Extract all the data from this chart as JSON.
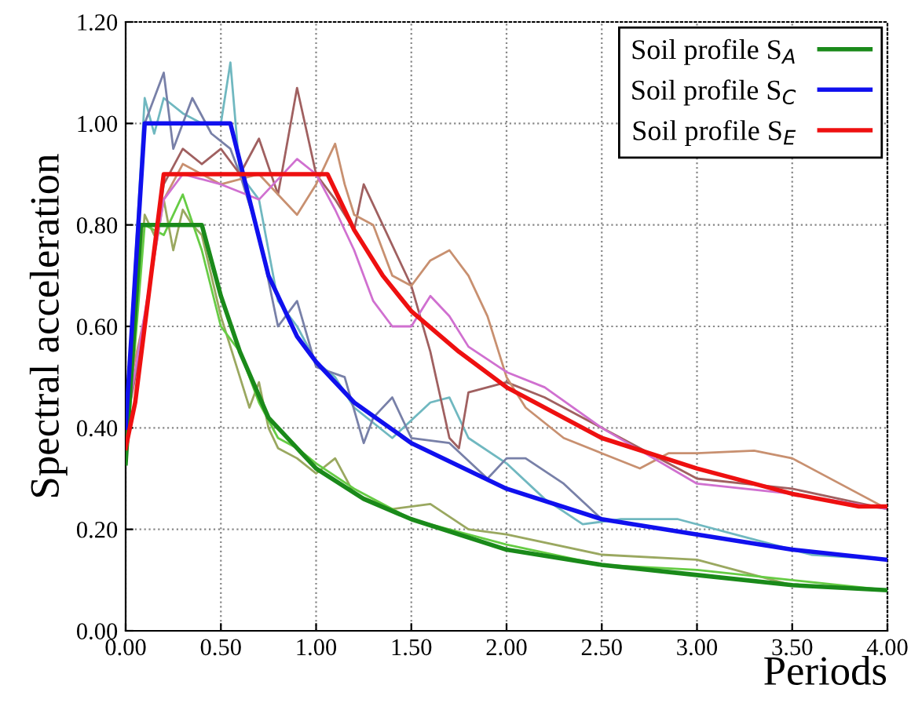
{
  "chart_data": {
    "type": "line",
    "xlabel": "Periods",
    "ylabel": "Spectral acceleration",
    "xlim": [
      0,
      4
    ],
    "ylim": [
      0,
      1.2
    ],
    "xticks": [
      {
        "value": 0,
        "label": "0.00"
      },
      {
        "value": 0.5,
        "label": "0.50"
      },
      {
        "value": 1,
        "label": "1.00"
      },
      {
        "value": 1.5,
        "label": "1.50"
      },
      {
        "value": 2,
        "label": "2.00"
      },
      {
        "value": 2.5,
        "label": "2.50"
      },
      {
        "value": 3,
        "label": "3.00"
      },
      {
        "value": 3.5,
        "label": "3.50"
      },
      {
        "value": 4,
        "label": "4.00"
      }
    ],
    "yticks": [
      {
        "value": 0,
        "label": "0.00"
      },
      {
        "value": 0.2,
        "label": "0.20"
      },
      {
        "value": 0.4,
        "label": "0.40"
      },
      {
        "value": 0.6,
        "label": "0.60"
      },
      {
        "value": 0.8,
        "label": "0.80"
      },
      {
        "value": 1,
        "label": "1.00"
      },
      {
        "value": 1.2,
        "label": "1.20"
      }
    ],
    "grid": true,
    "legend": "top right",
    "series": [
      {
        "color": "#9aa860",
        "x": [
          0,
          0.05,
          0.1,
          0.15,
          0.2,
          0.25,
          0.3,
          0.35,
          0.4,
          0.45,
          0.5,
          0.55,
          0.6,
          0.65,
          0.7,
          0.75,
          0.8,
          0.9,
          1.0,
          1.1,
          1.2,
          1.4,
          1.6,
          1.8,
          2.0,
          2.5,
          3.0,
          3.5,
          4.0
        ],
        "values": [
          0.35,
          0.6,
          0.82,
          0.78,
          0.85,
          0.75,
          0.83,
          0.8,
          0.78,
          0.7,
          0.62,
          0.56,
          0.5,
          0.44,
          0.49,
          0.4,
          0.36,
          0.34,
          0.31,
          0.34,
          0.27,
          0.24,
          0.25,
          0.2,
          0.19,
          0.15,
          0.14,
          0.09,
          0.08
        ]
      },
      {
        "color": "#66cc44",
        "x": [
          0,
          0.1,
          0.2,
          0.3,
          0.4,
          0.5,
          0.6,
          0.7,
          0.8,
          0.9,
          1.0,
          1.2,
          1.5,
          2.0,
          2.5,
          3.0,
          4.0
        ],
        "values": [
          0.33,
          0.8,
          0.78,
          0.86,
          0.75,
          0.6,
          0.55,
          0.45,
          0.38,
          0.36,
          0.33,
          0.28,
          0.22,
          0.17,
          0.13,
          0.12,
          0.08
        ]
      },
      {
        "color": "#70b8c0",
        "x": [
          0,
          0.1,
          0.15,
          0.2,
          0.3,
          0.4,
          0.5,
          0.55,
          0.6,
          0.7,
          0.8,
          0.9,
          1.0,
          1.1,
          1.2,
          1.4,
          1.6,
          1.7,
          1.8,
          2.0,
          2.2,
          2.4,
          2.6,
          2.9,
          3.3,
          3.6,
          4.0
        ],
        "values": [
          0.4,
          1.05,
          0.98,
          1.05,
          1.02,
          1.0,
          1.0,
          1.12,
          0.9,
          0.85,
          0.65,
          0.6,
          0.53,
          0.5,
          0.44,
          0.38,
          0.45,
          0.46,
          0.38,
          0.33,
          0.26,
          0.21,
          0.22,
          0.22,
          0.18,
          0.15,
          0.14
        ]
      },
      {
        "color": "#7880a8",
        "x": [
          0,
          0.1,
          0.2,
          0.25,
          0.35,
          0.45,
          0.55,
          0.6,
          0.7,
          0.8,
          0.9,
          1.0,
          1.15,
          1.25,
          1.3,
          1.4,
          1.5,
          1.7,
          1.9,
          2.0,
          2.1,
          2.3,
          2.5,
          3.0,
          3.5,
          4.0
        ],
        "values": [
          0.4,
          1.0,
          1.1,
          0.95,
          1.05,
          0.98,
          0.95,
          0.9,
          0.78,
          0.6,
          0.65,
          0.52,
          0.5,
          0.37,
          0.42,
          0.46,
          0.38,
          0.37,
          0.3,
          0.34,
          0.34,
          0.29,
          0.22,
          0.19,
          0.16,
          0.14
        ]
      },
      {
        "color": "#a06060",
        "x": [
          0,
          0.1,
          0.2,
          0.3,
          0.4,
          0.5,
          0.6,
          0.7,
          0.8,
          0.9,
          1.0,
          1.1,
          1.2,
          1.25,
          1.35,
          1.5,
          1.6,
          1.7,
          1.75,
          1.8,
          1.9,
          2.0,
          2.2,
          2.5,
          3.0,
          3.5,
          4.0
        ],
        "values": [
          0.4,
          0.6,
          0.88,
          0.95,
          0.92,
          0.95,
          0.9,
          0.97,
          0.86,
          1.07,
          0.9,
          0.85,
          0.79,
          0.88,
          0.8,
          0.68,
          0.55,
          0.38,
          0.36,
          0.47,
          0.48,
          0.49,
          0.46,
          0.4,
          0.3,
          0.28,
          0.24
        ]
      },
      {
        "color": "#c89070",
        "x": [
          0,
          0.1,
          0.2,
          0.3,
          0.5,
          0.7,
          0.9,
          1.0,
          1.1,
          1.15,
          1.2,
          1.3,
          1.4,
          1.5,
          1.6,
          1.7,
          1.8,
          1.9,
          2.0,
          2.1,
          2.3,
          2.5,
          2.7,
          2.85,
          3.0,
          3.3,
          3.5,
          4.0
        ],
        "values": [
          0.45,
          0.62,
          0.85,
          0.92,
          0.88,
          0.9,
          0.82,
          0.88,
          0.96,
          0.88,
          0.82,
          0.8,
          0.7,
          0.68,
          0.73,
          0.75,
          0.7,
          0.62,
          0.5,
          0.44,
          0.38,
          0.35,
          0.32,
          0.35,
          0.35,
          0.355,
          0.34,
          0.24
        ]
      },
      {
        "color": "#d070d0",
        "x": [
          0,
          0.2,
          0.3,
          0.5,
          0.7,
          0.9,
          1.0,
          1.1,
          1.2,
          1.3,
          1.4,
          1.5,
          1.6,
          1.7,
          1.8,
          2.0,
          2.2,
          2.5,
          3.0,
          3.5,
          4.0
        ],
        "values": [
          0.4,
          0.85,
          0.9,
          0.88,
          0.85,
          0.93,
          0.9,
          0.83,
          0.75,
          0.65,
          0.6,
          0.6,
          0.66,
          0.62,
          0.56,
          0.51,
          0.48,
          0.4,
          0.29,
          0.27,
          0.24
        ]
      },
      {
        "name": "Soil profile S$_{A}$",
        "color": "#1a8a1a",
        "x": [
          0,
          0.08,
          0.4,
          0.5,
          0.6,
          0.75,
          1.0,
          1.25,
          1.5,
          2.0,
          2.5,
          3.0,
          3.5,
          4.0
        ],
        "values": [
          0.33,
          0.8,
          0.8,
          0.66,
          0.55,
          0.42,
          0.32,
          0.26,
          0.22,
          0.16,
          0.13,
          0.11,
          0.09,
          0.08
        ]
      },
      {
        "name": "Soil profile S$_{C}$",
        "color": "#1010ee",
        "x": [
          0,
          0.1,
          0.55,
          0.65,
          0.75,
          0.9,
          1.0,
          1.2,
          1.5,
          2.0,
          2.5,
          3.0,
          3.5,
          4.0
        ],
        "values": [
          0.4,
          1.0,
          1.0,
          0.85,
          0.7,
          0.58,
          0.53,
          0.45,
          0.37,
          0.28,
          0.22,
          0.19,
          0.16,
          0.14
        ]
      },
      {
        "name": "Soil profile S$_{E}$",
        "color": "#ee1010",
        "x": [
          0,
          0.05,
          0.2,
          1.06,
          1.2,
          1.35,
          1.5,
          1.75,
          2.0,
          2.5,
          3.0,
          3.5,
          3.85,
          4.0
        ],
        "values": [
          0.36,
          0.45,
          0.9,
          0.9,
          0.79,
          0.7,
          0.63,
          0.55,
          0.48,
          0.38,
          0.32,
          0.27,
          0.245,
          0.245
        ]
      }
    ]
  }
}
